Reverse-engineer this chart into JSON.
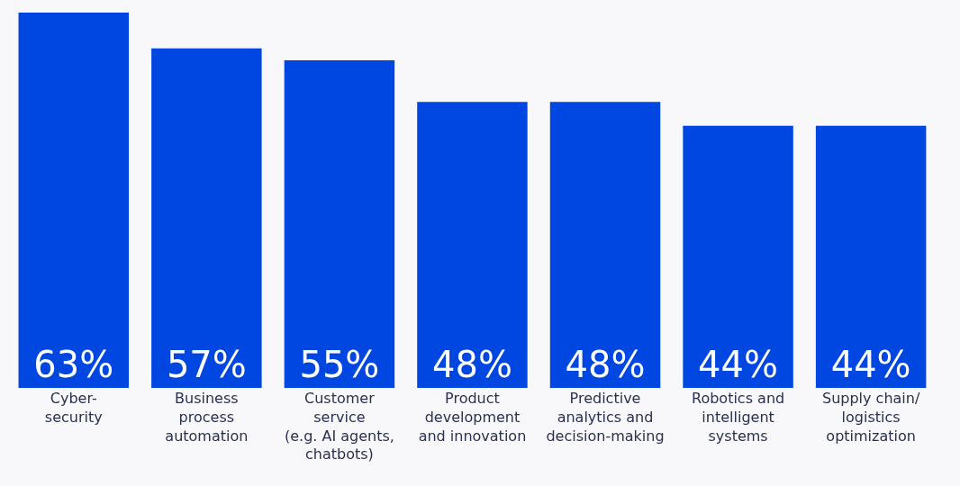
{
  "chart_data": {
    "type": "bar",
    "categories": [
      "Cyber-\nsecurity",
      "Business\nprocess\nautomation",
      "Customer\nservice\n(e.g. AI agents,\nchatbots)",
      "Product\ndevelopment\nand innovation",
      "Predictive\nanalytics and\ndecision-making",
      "Robotics and\nintelligent\nsystems",
      "Supply chain/\nlogistics\noptimization"
    ],
    "values": [
      63,
      57,
      55,
      48,
      48,
      44,
      44
    ],
    "value_labels": [
      "63%",
      "57%",
      "55%",
      "48%",
      "48%",
      "44%",
      "44%"
    ],
    "color": "#0046e0"
  }
}
